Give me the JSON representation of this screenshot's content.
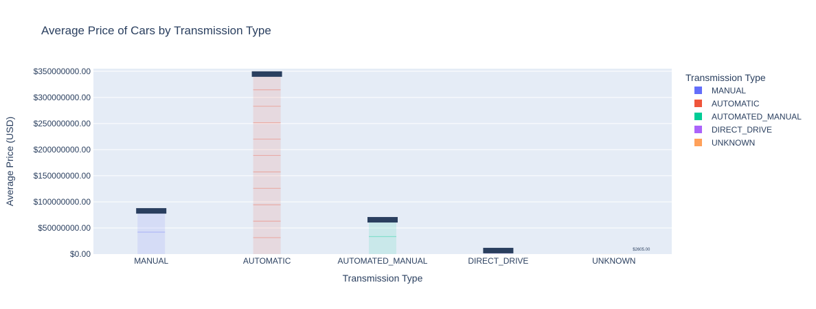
{
  "chart_data": {
    "type": "bar",
    "title": "Average Price of Cars by Transmission Type",
    "xlabel": "Transmission Type",
    "ylabel": "Average Price (USD)",
    "ylim": [
      0,
      355000000
    ],
    "y_ticks": [
      0,
      50000000,
      100000000,
      150000000,
      200000000,
      250000000,
      300000000,
      350000000
    ],
    "y_tick_labels": [
      "$0.00",
      "$50000000.00",
      "$100000000.00",
      "$150000000.00",
      "$200000000.00",
      "$250000000.00",
      "$300000000.00",
      "$350000000.00"
    ],
    "categories": [
      "MANUAL",
      "AUTOMATIC",
      "AUTOMATED_MANUAL",
      "DIRECT_DRIVE",
      "UNKNOWN"
    ],
    "legend_title": "Transmission Type",
    "legend_position": "right",
    "series": [
      {
        "name": "MANUAL",
        "color": "#636efa",
        "values": [
          84000000,
          null,
          null,
          null,
          null
        ]
      },
      {
        "name": "AUTOMATIC",
        "color": "#EF553B",
        "values": [
          null,
          346000000,
          null,
          null,
          null
        ]
      },
      {
        "name": "AUTOMATED_MANUAL",
        "color": "#00cc96",
        "values": [
          null,
          null,
          67000000,
          null,
          null
        ]
      },
      {
        "name": "DIRECT_DRIVE",
        "color": "#ab63fa",
        "values": [
          null,
          null,
          null,
          8000000,
          null
        ]
      },
      {
        "name": "UNKNOWN",
        "color": "#FFA15A",
        "values": [
          null,
          null,
          null,
          null,
          2605
        ]
      }
    ],
    "annotations": [
      {
        "category": "UNKNOWN",
        "text": "$2605.00"
      }
    ]
  },
  "colors": {
    "plot_background": "#e5ecf6",
    "grid": "#ffffff",
    "text": "#2a3f5f",
    "dense_label": "#2a3f5f"
  }
}
